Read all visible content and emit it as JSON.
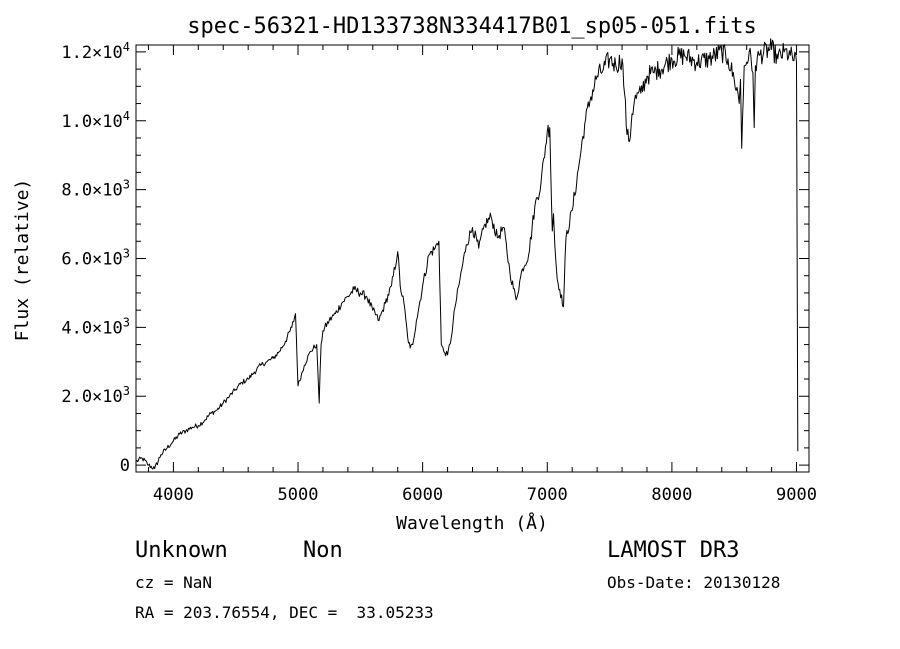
{
  "chart_data": {
    "type": "line",
    "title": "spec-56321-HD133738N334417B01_sp05-051.fits",
    "xlabel": "Wavelength (Å)",
    "ylabel": "Flux (relative)",
    "xlim": [
      3700,
      9100
    ],
    "ylim": [
      -200,
      12200
    ],
    "xticks": [
      {
        "value": 4000,
        "label": "4000"
      },
      {
        "value": 5000,
        "label": "5000"
      },
      {
        "value": 6000,
        "label": "6000"
      },
      {
        "value": 7000,
        "label": "7000"
      },
      {
        "value": 8000,
        "label": "8000"
      },
      {
        "value": 9000,
        "label": "9000"
      }
    ],
    "yticks": [
      {
        "value": 0,
        "mantissa": "0",
        "exp": ""
      },
      {
        "value": 2000,
        "mantissa": "2.0×10",
        "exp": "3"
      },
      {
        "value": 4000,
        "mantissa": "4.0×10",
        "exp": "3"
      },
      {
        "value": 6000,
        "mantissa": "6.0×10",
        "exp": "3"
      },
      {
        "value": 8000,
        "mantissa": "8.0×10",
        "exp": "3"
      },
      {
        "value": 10000,
        "mantissa": "1.0×10",
        "exp": "4"
      },
      {
        "value": 12000,
        "mantissa": "1.2×10",
        "exp": "4"
      }
    ],
    "series": [
      {
        "name": "flux",
        "x": [
          3700,
          3750,
          3800,
          3850,
          3900,
          3950,
          4000,
          4050,
          4100,
          4150,
          4200,
          4250,
          4300,
          4350,
          4400,
          4450,
          4500,
          4550,
          4600,
          4650,
          4700,
          4750,
          4800,
          4850,
          4900,
          4950,
          4980,
          5000,
          5050,
          5100,
          5150,
          5170,
          5185,
          5200,
          5250,
          5300,
          5350,
          5400,
          5450,
          5500,
          5550,
          5600,
          5650,
          5700,
          5750,
          5800,
          5820,
          5850,
          5880,
          5900,
          5920,
          5950,
          6000,
          6050,
          6100,
          6130,
          6150,
          6170,
          6200,
          6230,
          6260,
          6300,
          6350,
          6400,
          6450,
          6500,
          6550,
          6600,
          6650,
          6700,
          6750,
          6800,
          6850,
          6900,
          6950,
          7000,
          7020,
          7040,
          7050,
          7060,
          7080,
          7100,
          7130,
          7150,
          7200,
          7250,
          7300,
          7350,
          7400,
          7450,
          7500,
          7550,
          7600,
          7620,
          7640,
          7660,
          7680,
          7700,
          7750,
          7800,
          7850,
          7900,
          8000,
          8100,
          8200,
          8300,
          8400,
          8450,
          8500,
          8530,
          8540,
          8550,
          8560,
          8580,
          8600,
          8620,
          8650,
          8660,
          8670,
          8700,
          8800,
          8850,
          8900,
          8950,
          9000,
          9010
        ],
        "y": [
          100,
          200,
          0,
          -100,
          300,
          500,
          700,
          900,
          1000,
          1100,
          1150,
          1300,
          1500,
          1600,
          1800,
          2000,
          2200,
          2400,
          2500,
          2700,
          2900,
          3000,
          3100,
          3300,
          3600,
          4000,
          4400,
          2300,
          2900,
          3300,
          3500,
          1800,
          3500,
          3900,
          4200,
          4400,
          4700,
          4900,
          5100,
          5000,
          4900,
          4500,
          4200,
          4700,
          5200,
          6200,
          5200,
          4700,
          3700,
          3400,
          3500,
          4200,
          5200,
          6100,
          6300,
          6500,
          3500,
          3300,
          3200,
          3700,
          4600,
          5400,
          6400,
          6900,
          6300,
          7000,
          7200,
          6600,
          6900,
          5600,
          4800,
          5700,
          6100,
          7500,
          8200,
          9700,
          9800,
          6800,
          7300,
          6400,
          5400,
          5100,
          4600,
          6600,
          7400,
          8600,
          9900,
          10700,
          11300,
          11500,
          11800,
          11600,
          11800,
          10800,
          9600,
          9400,
          10200,
          10600,
          10800,
          11300,
          11400,
          11500,
          11800,
          11900,
          11700,
          11800,
          12000,
          11800,
          11200,
          10800,
          10500,
          11200,
          9200,
          11600,
          11700,
          12000,
          11400,
          9800,
          11600,
          11900,
          12100,
          11800,
          12000,
          11900,
          11700,
          400
        ]
      }
    ]
  },
  "info": {
    "object_name": "Unknown",
    "object_class": "Non",
    "cz": "cz = NaN",
    "coords": "RA = 203.76554, DEC =  33.05233",
    "survey": "LAMOST DR3",
    "obs_date": "Obs-Date: 20130128"
  }
}
